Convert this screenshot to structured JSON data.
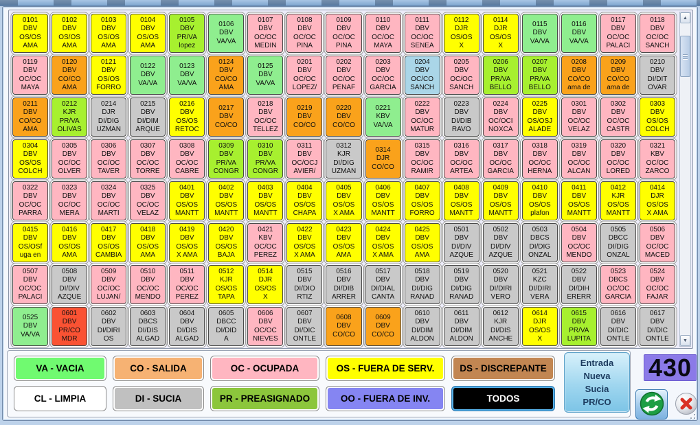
{
  "colors": {
    "os": "#ffff00",
    "oc": "#ffb6c1",
    "co": "#faa21b",
    "va": "#8fee8f",
    "pr": "#a7f02f",
    "di": "#c9c9c9",
    "lb": "#aad6e8",
    "red": "#fa5233",
    "legend_va": "#70fa70",
    "legend_co": "#f6b273",
    "legend_oc": "#ffb6c1",
    "legend_os": "#ffff00",
    "legend_ds": "#c28652",
    "legend_cl": "#ffffff",
    "legend_di": "#c0c0c0",
    "legend_pr": "#8cc63c",
    "legend_oo": "#8585f2",
    "legend_todos": "#000000",
    "counter_bg": "#8b7ae8",
    "refresh_green": "#1d9e44",
    "close_red": "#d93025"
  },
  "grid": {
    "cell_fields": [
      "number",
      "room_type",
      "status",
      "note",
      "color"
    ],
    "cells": [
      [
        "0101",
        "DBV",
        "OS/OS",
        "AMA",
        "os"
      ],
      [
        "0102",
        "DBV",
        "OS/OS",
        "AMA",
        "os"
      ],
      [
        "0103",
        "DBV",
        "OS/OS",
        "AMA",
        "os"
      ],
      [
        "0104",
        "DBV",
        "OS/OS",
        "AMA",
        "os"
      ],
      [
        "0105",
        "DBV",
        "PR/VA",
        "lopez",
        "pr"
      ],
      [
        "0106",
        "DBV",
        "VA/VA",
        "",
        "va"
      ],
      [
        "0107",
        "DBV",
        "OC/OC",
        "MEDIN",
        "oc"
      ],
      [
        "0108",
        "DBV",
        "OC/OC",
        "PIÑA",
        "oc"
      ],
      [
        "0109",
        "DBV",
        "OC/OC",
        "PIÑA",
        "oc"
      ],
      [
        "0110",
        "DBV",
        "OC/OC",
        "MAYA",
        "oc"
      ],
      [
        "0111",
        "DBV",
        "OC/OC",
        "SENEA",
        "oc"
      ],
      [
        "0112",
        "DJR",
        "OS/OS",
        "X",
        "os"
      ],
      [
        "0114",
        "DJR",
        "OS/OS",
        "X",
        "os"
      ],
      [
        "0115",
        "DBV",
        "VA/VA",
        "",
        "va"
      ],
      [
        "0116",
        "DBV",
        "VA/VA",
        "",
        "va"
      ],
      [
        "0117",
        "DBV",
        "OC/OC",
        "PALACI",
        "oc"
      ],
      [
        "0118",
        "DBV",
        "OC/OC",
        "SANCH",
        "oc"
      ],
      [
        "0119",
        "DBV",
        "OC/OC",
        "MAYA",
        "oc"
      ],
      [
        "0120",
        "DBV",
        "CO/CO",
        "AMA",
        "co"
      ],
      [
        "0121",
        "DBV",
        "OS/OS",
        "FORRO",
        "os"
      ],
      [
        "0122",
        "DBV",
        "VA/VA",
        "",
        "va"
      ],
      [
        "0123",
        "DBV",
        "VA/VA",
        "",
        "va"
      ],
      [
        "0124",
        "DBV",
        "CO/CO",
        "AMA",
        "co"
      ],
      [
        "0125",
        "DBV",
        "VA/VA",
        "",
        "va"
      ],
      [
        "0201",
        "DBV",
        "OC/OC",
        "LOPEZ/",
        "oc"
      ],
      [
        "0202",
        "DBV",
        "OC/OC",
        "PENAF",
        "oc"
      ],
      [
        "0203",
        "DBV",
        "OC/OC",
        "GARCIA",
        "oc"
      ],
      [
        "0204",
        "DBV",
        "OC/CO",
        "SANCH",
        "lb"
      ],
      [
        "0205",
        "DBV",
        "OC/OC",
        "SANCH",
        "oc"
      ],
      [
        "0206",
        "DBV",
        "PR/VA",
        "BELLO",
        "pr"
      ],
      [
        "0207",
        "DBV",
        "PR/VA",
        "BELLO",
        "pr"
      ],
      [
        "0208",
        "DBV",
        "CO/CO",
        "ama de",
        "co"
      ],
      [
        "0209",
        "DBV",
        "CO/CO",
        "ama de",
        "co"
      ],
      [
        "0210",
        "DBV",
        "DI/DIT",
        "OVAR",
        "di"
      ],
      [
        "0211",
        "DBV",
        "CO/CO",
        "AMA",
        "co"
      ],
      [
        "0212",
        "KJR",
        "PR/VA",
        "OLIVAS",
        "pr"
      ],
      [
        "0214",
        "DJR",
        "DI/DIG",
        "UZMAN",
        "di"
      ],
      [
        "0215",
        "DBV",
        "DI/DIM",
        "ARQUE",
        "di"
      ],
      [
        "0216",
        "DBV",
        "OS/OS",
        "RETOC",
        "os"
      ],
      [
        "0217",
        "DBV",
        "CO/CO",
        "",
        "co"
      ],
      [
        "0218",
        "DBV",
        "OC/OC",
        "TELLEZ",
        "oc"
      ],
      [
        "0219",
        "DBV",
        "CO/CO",
        "",
        "co"
      ],
      [
        "0220",
        "DBV",
        "CO/CO",
        "",
        "co"
      ],
      [
        "0221",
        "KBV",
        "VA/VA",
        "",
        "va"
      ],
      [
        "0222",
        "DBV",
        "OC/OC",
        "MATUR",
        "oc"
      ],
      [
        "0223",
        "DBV",
        "DI/DIB",
        "RAVO",
        "di"
      ],
      [
        "0224",
        "DBV",
        "OC/OCI",
        "NOXCA",
        "oc"
      ],
      [
        "0225",
        "DBV",
        "OS/OSJ",
        "ALADE",
        "os"
      ],
      [
        "0301",
        "DBV",
        "OC/OC",
        "VELAZ",
        "oc"
      ],
      [
        "0302",
        "DBV",
        "OC/OC",
        "CASTR",
        "oc"
      ],
      [
        "0303",
        "DBV",
        "OS/OS",
        "COLCH",
        "os"
      ],
      [
        "0304",
        "DBV",
        "OS/OS",
        "COLCH",
        "os"
      ],
      [
        "0305",
        "DBV",
        "OC/OC",
        "OLVER",
        "oc"
      ],
      [
        "0306",
        "DBV",
        "OC/OC",
        "TAVER",
        "oc"
      ],
      [
        "0307",
        "DBV",
        "OC/OC",
        "TORRE",
        "oc"
      ],
      [
        "0308",
        "DBV",
        "OC/OC",
        "CABRE",
        "oc"
      ],
      [
        "0309",
        "DBV",
        "PR/VA",
        "CONGR",
        "pr"
      ],
      [
        "0310",
        "DBV",
        "PR/VA",
        "CONGR",
        "pr"
      ],
      [
        "0311",
        "DBV",
        "OC/OCJ",
        "AVIER/",
        "oc"
      ],
      [
        "0312",
        "KJR",
        "DI/DIG",
        "UZMAN",
        "di"
      ],
      [
        "0314",
        "DJR",
        "CO/CO",
        "",
        "co"
      ],
      [
        "0315",
        "DBV",
        "OC/OC",
        "RAMIR",
        "oc"
      ],
      [
        "0316",
        "DBV",
        "OC/OC",
        "ARTEA",
        "oc"
      ],
      [
        "0317",
        "DBV",
        "OC/OC",
        "GARCIA",
        "oc"
      ],
      [
        "0318",
        "DBV",
        "OC/OC",
        "HERNA",
        "oc"
      ],
      [
        "0319",
        "DBV",
        "OC/OC",
        "ALCAN",
        "oc"
      ],
      [
        "0320",
        "DBV",
        "OC/OC",
        "LORED",
        "oc"
      ],
      [
        "0321",
        "KBV",
        "OC/OC",
        "ZARCO",
        "oc"
      ],
      [
        "0322",
        "DBV",
        "OC/OC",
        "PARRA",
        "oc"
      ],
      [
        "0323",
        "DBV",
        "OC/OC",
        "MERA",
        "oc"
      ],
      [
        "0324",
        "DBV",
        "OC/OC",
        "MARTI",
        "oc"
      ],
      [
        "0325",
        "DBV",
        "OC/OC",
        "VELAZ",
        "oc"
      ],
      [
        "0401",
        "DBV",
        "OS/OS",
        "MANTT",
        "os"
      ],
      [
        "0402",
        "DBV",
        "OS/OS",
        "MANTT",
        "os"
      ],
      [
        "0403",
        "DBV",
        "OS/OS",
        "MANTT",
        "os"
      ],
      [
        "0404",
        "DBV",
        "OS/OS",
        "CHAPA",
        "os"
      ],
      [
        "0405",
        "DBV",
        "OS/OS",
        "X AMA",
        "os"
      ],
      [
        "0406",
        "DBV",
        "OS/OS",
        "MANTT",
        "os"
      ],
      [
        "0407",
        "DBV",
        "OS/OS",
        "FORRO",
        "os"
      ],
      [
        "0408",
        "DBV",
        "OS/OS",
        "MANTT",
        "os"
      ],
      [
        "0409",
        "DBV",
        "OS/OS",
        "MANTT",
        "os"
      ],
      [
        "0410",
        "DBV",
        "OS/OS",
        "plafon",
        "os"
      ],
      [
        "0411",
        "DBV",
        "OS/OS",
        "MANTT",
        "os"
      ],
      [
        "0412",
        "KJR",
        "OS/OS",
        "MANTT",
        "os"
      ],
      [
        "0414",
        "DJR",
        "OS/OS",
        "X AMA",
        "os"
      ],
      [
        "0415",
        "DBV",
        "OS/OSf",
        "uga en",
        "os"
      ],
      [
        "0416",
        "DBV",
        "OS/OS",
        "AMA",
        "os"
      ],
      [
        "0417",
        "DBV",
        "OS/OS",
        "CAMBIA",
        "os"
      ],
      [
        "0418",
        "DBV",
        "OS/OS",
        "AMA",
        "os"
      ],
      [
        "0419",
        "DBV",
        "OS/OS",
        "X AMA",
        "os"
      ],
      [
        "0420",
        "DBV",
        "OS/OS",
        "BAJA",
        "os"
      ],
      [
        "0421",
        "KBV",
        "OC/OC",
        "PEREZ",
        "oc"
      ],
      [
        "0422",
        "DBV",
        "OS/OS",
        "X AMA",
        "os"
      ],
      [
        "0423",
        "DBV",
        "OS/OS",
        "AMA",
        "os"
      ],
      [
        "0424",
        "DBV",
        "OS/OS",
        "X AMA",
        "os"
      ],
      [
        "0425",
        "DBV",
        "OS/OS",
        "AMA",
        "os"
      ],
      [
        "0501",
        "DBV",
        "DI/DIV",
        "AZQUE",
        "di"
      ],
      [
        "0502",
        "DBV",
        "DI/DIV",
        "AZQUE",
        "di"
      ],
      [
        "0503",
        "DBCS",
        "DI/DIG",
        "ONZAL",
        "di"
      ],
      [
        "0504",
        "DBV",
        "OC/OC",
        "MENDO",
        "oc"
      ],
      [
        "0505",
        "DBCC",
        "DI/DIG",
        "ONZAL",
        "di"
      ],
      [
        "0506",
        "DBV",
        "OC/OC",
        "MACED",
        "oc"
      ],
      [
        "0507",
        "DBV",
        "OC/OC",
        "PALACI",
        "oc"
      ],
      [
        "0508",
        "DBV",
        "DI/DIV",
        "AZQUE",
        "di"
      ],
      [
        "0509",
        "DBV",
        "OC/OC",
        "LUJAN/",
        "oc"
      ],
      [
        "0510",
        "DBV",
        "OC/OC",
        "MENDO",
        "oc"
      ],
      [
        "0511",
        "DBV",
        "OC/OC",
        "PEREZ",
        "oc"
      ],
      [
        "0512",
        "KJR",
        "OS/OS",
        "TAPA",
        "os"
      ],
      [
        "0514",
        "DJR",
        "OS/OS",
        "X",
        "os"
      ],
      [
        "0515",
        "DBV",
        "DI/DIO",
        "RTIZ",
        "di"
      ],
      [
        "0516",
        "DBV",
        "DI/DIB",
        "ARRER",
        "di"
      ],
      [
        "0517",
        "DBV",
        "DI/DIAL",
        "CANTA",
        "di"
      ],
      [
        "0518",
        "DBV",
        "DI/DIG",
        "RANAD",
        "di"
      ],
      [
        "0519",
        "DBV",
        "DI/DIG",
        "RANAD",
        "di"
      ],
      [
        "0520",
        "DBV",
        "DI/DIRI",
        "VERO",
        "di"
      ],
      [
        "0521",
        "KZC",
        "DI/DIRI",
        "VERA",
        "di"
      ],
      [
        "0522",
        "DBV",
        "DI/DIH",
        "ERERR",
        "di"
      ],
      [
        "0523",
        "DBCS",
        "OC/OC",
        "GARCIA",
        "oc"
      ],
      [
        "0524",
        "DBV",
        "OC/OC",
        "FAJAR",
        "oc"
      ],
      [
        "0525",
        "DBV",
        "VA/VA",
        "",
        "va"
      ],
      [
        "0601",
        "DBV",
        "PR/CO",
        "MDR",
        "red"
      ],
      [
        "0602",
        "DBV",
        "DI/DIRI",
        "OS",
        "di"
      ],
      [
        "0603",
        "DBCS",
        "DI/DIS",
        "ALGAD",
        "di"
      ],
      [
        "0604",
        "DBV",
        "DI/DIS",
        "ALGAD",
        "di"
      ],
      [
        "0605",
        "DBCC",
        "DI/DID",
        "A",
        "di"
      ],
      [
        "0606",
        "DBV",
        "OC/OC",
        "NIEVES",
        "oc"
      ],
      [
        "0607",
        "DBV",
        "DI/DIC",
        "ONTLE",
        "di"
      ],
      [
        "0608",
        "DBV",
        "CO/CO",
        "",
        "co"
      ],
      [
        "0609",
        "DBV",
        "CO/CO",
        "",
        "co"
      ],
      [
        "0610",
        "DBV",
        "DI/DIM",
        "ALDON",
        "di"
      ],
      [
        "0611",
        "DBV",
        "DI/DIM",
        "ALDON",
        "di"
      ],
      [
        "0612",
        "KJR",
        "DI/DIS",
        "ANCHE",
        "di"
      ],
      [
        "0614",
        "DJR",
        "OS/OS",
        "X",
        "os"
      ],
      [
        "0615",
        "DBV",
        "PR/VA",
        "LUPITA",
        "pr"
      ],
      [
        "0616",
        "DBV",
        "DI/DIC",
        "ONTLE",
        "di"
      ],
      [
        "0617",
        "DBV",
        "DI/DIC",
        "ONTLE",
        "di"
      ]
    ]
  },
  "legend": {
    "row1": [
      {
        "code": "va",
        "label": "VA - VACIA",
        "color": "legend_va",
        "text": "#000000"
      },
      {
        "code": "co",
        "label": "CO - SALIDA",
        "color": "legend_co",
        "text": "#000000"
      },
      {
        "code": "oc",
        "label": "OC - OCUPADA",
        "color": "legend_oc",
        "text": "#000000"
      },
      {
        "code": "os",
        "label": "OS - FUERA DE SERV.",
        "color": "legend_os",
        "text": "#000000"
      },
      {
        "code": "ds",
        "label": "DS - DISCREPANTE",
        "color": "legend_ds",
        "text": "#000000"
      }
    ],
    "row2": [
      {
        "code": "cl",
        "label": "CL - LIMPIA",
        "color": "legend_cl",
        "text": "#000000"
      },
      {
        "code": "di",
        "label": "DI - SUCIA",
        "color": "legend_di",
        "text": "#000000"
      },
      {
        "code": "pr",
        "label": "PR - PREASIGNADO",
        "color": "legend_pr",
        "text": "#000000"
      },
      {
        "code": "oo",
        "label": "OO - FUERA DE INV.",
        "color": "legend_oo",
        "text": "#000000"
      },
      {
        "code": "todos",
        "label": "TODOS",
        "color": "legend_todos",
        "text": "#ffffff",
        "focus": true
      }
    ]
  },
  "side": {
    "entrada_lines": [
      "Entrada",
      "Nueva",
      "Sucia",
      "PR/CO"
    ],
    "counter": "430"
  }
}
